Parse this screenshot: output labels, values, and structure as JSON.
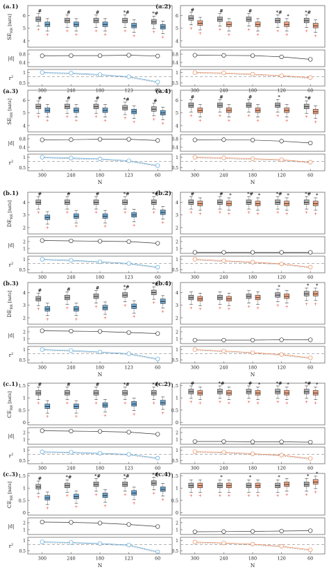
{
  "colors": {
    "box_gray": "#b3b3b3",
    "box_blue": "#6aa9d6",
    "box_orange": "#f4a582",
    "outlier": "#e8433b",
    "line_black": "#333333",
    "line_blue": "#5aa6da",
    "line_orange": "#ea8a5c",
    "dashed": "#9a9a9a"
  },
  "chart_data": [
    {
      "type": "box",
      "panel": "(a.1)",
      "ylabel_main": "SE",
      "ylabel_sub": "RR",
      "ylabel_unit": "[nats]",
      "ylabel_d": "|d|",
      "ylabel_r2": "r",
      "xlabel": "",
      "x": [
        "300",
        "240",
        "180",
        "123",
        "60"
      ],
      "box_yticks": [
        "4",
        "5",
        "6"
      ],
      "box_ylim": [
        3.5,
        6.8
      ],
      "d_yticks": [
        "0.8",
        "0.4"
      ],
      "d_ylim": [
        0.2,
        1.0
      ],
      "r2_yticks": [
        "1",
        "0.5"
      ],
      "r2_ylim": [
        0.35,
        1.15
      ],
      "pair_color": "blue",
      "medians_gray": [
        5.7,
        5.6,
        5.6,
        5.6,
        5.5
      ],
      "medians_color": [
        5.3,
        5.3,
        5.3,
        5.2,
        5.1
      ],
      "d": [
        0.72,
        0.73,
        0.73,
        0.75,
        0.71
      ],
      "r2": [
        1.0,
        0.97,
        0.9,
        0.8,
        0.55
      ],
      "r2_ref": 0.8,
      "marks_gray": [
        "#",
        "#",
        "#",
        "*#",
        "*#"
      ],
      "marks_color": [
        "",
        "",
        "",
        "",
        ""
      ]
    },
    {
      "type": "box",
      "panel": "(a.2)",
      "ylabel_main": "",
      "ylabel_sub": "",
      "ylabel_unit": "",
      "ylabel_d": "",
      "ylabel_r2": "",
      "xlabel": "",
      "x": [
        "300",
        "240",
        "180",
        "120",
        "60"
      ],
      "box_yticks": [
        "4",
        "5",
        "6"
      ],
      "box_ylim": [
        3.5,
        6.8
      ],
      "d_yticks": [
        "0.8",
        "0.4"
      ],
      "d_ylim": [
        0.2,
        1.0
      ],
      "r2_yticks": [
        "1",
        "0.5"
      ],
      "r2_ylim": [
        0.35,
        1.15
      ],
      "pair_color": "orange",
      "medians_gray": [
        5.8,
        5.7,
        5.7,
        5.6,
        5.6
      ],
      "medians_color": [
        5.4,
        5.3,
        5.3,
        5.3,
        5.2
      ],
      "d": [
        0.75,
        0.74,
        0.73,
        0.67,
        0.55
      ],
      "r2": [
        1.0,
        0.98,
        0.92,
        0.85,
        0.76
      ],
      "r2_ref": 0.8,
      "marks_gray": [
        "#",
        "#",
        "#",
        "*#",
        "*#"
      ],
      "marks_color": [
        "",
        "",
        "",
        "*",
        ""
      ]
    },
    {
      "type": "box",
      "panel": "(a.3)",
      "ylabel_main": "SE",
      "ylabel_sub": "RR",
      "ylabel_unit": "[nats]",
      "ylabel_d": "|d|",
      "ylabel_r2": "r",
      "xlabel": "N",
      "x": [
        "300",
        "240",
        "180",
        "123",
        "60"
      ],
      "box_yticks": [
        "4",
        "5",
        "6"
      ],
      "box_ylim": [
        3.5,
        6.8
      ],
      "d_yticks": [
        "0.8",
        "0.4"
      ],
      "d_ylim": [
        0.2,
        1.0
      ],
      "r2_yticks": [
        "1",
        "0.5"
      ],
      "r2_ylim": [
        0.35,
        1.15
      ],
      "pair_color": "blue",
      "medians_gray": [
        5.5,
        5.5,
        5.5,
        5.4,
        5.3
      ],
      "medians_color": [
        5.2,
        5.2,
        5.2,
        5.1,
        5.0
      ],
      "d": [
        0.75,
        0.76,
        0.78,
        0.78,
        0.72
      ],
      "r2": [
        1.0,
        0.96,
        0.92,
        0.83,
        0.6
      ],
      "r2_ref": 0.8,
      "marks_gray": [
        "#",
        "#",
        "#",
        "*#",
        "#"
      ],
      "marks_color": [
        "",
        "",
        "",
        "",
        ""
      ]
    },
    {
      "type": "box",
      "panel": "(a.4)",
      "ylabel_main": "",
      "ylabel_sub": "",
      "ylabel_unit": "",
      "ylabel_d": "",
      "ylabel_r2": "",
      "xlabel": "N",
      "x": [
        "300",
        "240",
        "180",
        "120",
        "60"
      ],
      "box_yticks": [
        "4",
        "5",
        "6"
      ],
      "box_ylim": [
        3.5,
        6.8
      ],
      "d_yticks": [
        "0.8",
        "0.4"
      ],
      "d_ylim": [
        0.2,
        1.0
      ],
      "r2_yticks": [
        "1",
        "0.5"
      ],
      "r2_ylim": [
        0.35,
        1.15
      ],
      "pair_color": "orange",
      "medians_gray": [
        5.6,
        5.6,
        5.6,
        5.6,
        5.5
      ],
      "medians_color": [
        5.2,
        5.2,
        5.2,
        5.2,
        5.1
      ],
      "d": [
        0.75,
        0.76,
        0.74,
        0.69,
        0.6
      ],
      "r2": [
        1.0,
        0.97,
        0.93,
        0.88,
        0.76
      ],
      "r2_ref": 0.8,
      "marks_gray": [
        "#",
        "#",
        "#",
        "*",
        "*#"
      ],
      "marks_color": [
        "",
        "",
        "",
        "",
        ""
      ]
    },
    {
      "type": "box",
      "panel": "(b.1)",
      "ylabel_main": "DE",
      "ylabel_sub": "RR",
      "ylabel_unit": "[nats]",
      "ylabel_d": "|d|",
      "ylabel_r2": "r",
      "xlabel": "",
      "x": [
        "300",
        "240",
        "180",
        "123",
        "60"
      ],
      "box_yticks": [
        "2",
        "3",
        "4"
      ],
      "box_ylim": [
        1.5,
        4.8
      ],
      "d_yticks": [
        "2",
        "1"
      ],
      "d_ylim": [
        0.3,
        2.7
      ],
      "r2_yticks": [
        "1",
        "0.5"
      ],
      "r2_ylim": [
        0.35,
        1.15
      ],
      "pair_color": "blue",
      "medians_gray": [
        4.0,
        4.0,
        4.0,
        4.0,
        4.0
      ],
      "medians_color": [
        2.8,
        2.9,
        2.9,
        3.0,
        3.2
      ],
      "d": [
        2.15,
        2.1,
        2.05,
        2.0,
        1.75
      ],
      "r2": [
        1.0,
        0.95,
        0.88,
        0.8,
        0.62
      ],
      "r2_ref": 0.8,
      "marks_gray": [
        "#",
        "#",
        "#",
        "*#",
        "*#"
      ],
      "marks_color": [
        "",
        "",
        "",
        "",
        ""
      ]
    },
    {
      "type": "box",
      "panel": "(b.2)",
      "ylabel_main": "",
      "ylabel_sub": "",
      "ylabel_unit": "",
      "ylabel_d": "",
      "ylabel_r2": "",
      "xlabel": "",
      "x": [
        "300",
        "240",
        "180",
        "120",
        "60"
      ],
      "box_yticks": [
        "2",
        "3",
        "4"
      ],
      "box_ylim": [
        1.5,
        4.8
      ],
      "d_yticks": [
        "2",
        "1"
      ],
      "d_ylim": [
        0.3,
        2.7
      ],
      "r2_yticks": [
        "1",
        "0.5"
      ],
      "r2_ylim": [
        0.35,
        1.15
      ],
      "pair_color": "orange",
      "medians_gray": [
        4.0,
        4.0,
        4.0,
        4.0,
        4.0
      ],
      "medians_color": [
        3.9,
        3.9,
        3.9,
        3.9,
        3.9
      ],
      "d": [
        0.45,
        0.45,
        0.45,
        0.45,
        0.45
      ],
      "r2": [
        1.0,
        0.93,
        0.86,
        0.78,
        0.62
      ],
      "r2_ref": 0.8,
      "marks_gray": [
        "#",
        "#",
        "*#",
        "*#",
        "*#"
      ],
      "marks_color": [
        "",
        "*",
        "*",
        "*",
        "*"
      ]
    },
    {
      "type": "box",
      "panel": "(b.3)",
      "ylabel_main": "DE",
      "ylabel_sub": "RR",
      "ylabel_unit": "[nats]",
      "ylabel_d": "|d|",
      "ylabel_r2": "r",
      "xlabel": "N",
      "x": [
        "300",
        "240",
        "180",
        "123",
        "60"
      ],
      "box_yticks": [
        "2",
        "3",
        "4"
      ],
      "box_ylim": [
        1.5,
        4.8
      ],
      "d_yticks": [
        "2",
        "1"
      ],
      "d_ylim": [
        0.3,
        2.7
      ],
      "r2_yticks": [
        "1",
        "0.5"
      ],
      "r2_ylim": [
        0.35,
        1.15
      ],
      "pair_color": "blue",
      "medians_gray": [
        3.5,
        3.6,
        3.7,
        3.8,
        4.0
      ],
      "medians_color": [
        2.7,
        2.7,
        2.8,
        2.9,
        3.3
      ],
      "d": [
        2.15,
        2.1,
        2.05,
        1.9,
        1.75
      ],
      "r2": [
        1.0,
        0.95,
        0.88,
        0.8,
        0.55
      ],
      "r2_ref": 0.8,
      "marks_gray": [
        "#",
        "#",
        "#",
        "*#",
        "*#"
      ],
      "marks_color": [
        "",
        "",
        "",
        "",
        ""
      ]
    },
    {
      "type": "box",
      "panel": "(b.4)",
      "ylabel_main": "",
      "ylabel_sub": "",
      "ylabel_unit": "",
      "ylabel_d": "",
      "ylabel_r2": "",
      "xlabel": "N",
      "x": [
        "300",
        "240",
        "180",
        "120",
        "60"
      ],
      "box_yticks": [
        "2",
        "3",
        "4"
      ],
      "box_ylim": [
        1.5,
        4.8
      ],
      "d_yticks": [
        "2",
        "1"
      ],
      "d_ylim": [
        0.3,
        2.7
      ],
      "r2_yticks": [
        "1",
        "0.5"
      ],
      "r2_ylim": [
        0.35,
        1.15
      ],
      "pair_color": "orange",
      "medians_gray": [
        3.6,
        3.6,
        3.7,
        3.8,
        3.9
      ],
      "medians_color": [
        3.5,
        3.5,
        3.6,
        3.7,
        3.9
      ],
      "d": [
        0.8,
        0.8,
        0.8,
        0.85,
        0.85
      ],
      "r2": [
        1.0,
        0.93,
        0.85,
        0.76,
        0.6
      ],
      "r2_ref": 0.8,
      "marks_gray": [
        "",
        "",
        "",
        "*",
        "*"
      ],
      "marks_color": [
        "",
        "",
        "",
        "",
        "*"
      ]
    },
    {
      "type": "box",
      "panel": "(c.1)",
      "ylabel_main": "CE",
      "ylabel_sub": "RR",
      "ylabel_unit": "[nats]",
      "ylabel_d": "|d|",
      "ylabel_r2": "r",
      "xlabel": "",
      "x": [
        "300",
        "240",
        "180",
        "123",
        "60"
      ],
      "box_yticks": [
        "0",
        "0.5",
        "1",
        "1.5"
      ],
      "box_ylim": [
        -0.1,
        1.6
      ],
      "d_yticks": [
        "2",
        "1"
      ],
      "d_ylim": [
        0.3,
        2.7
      ],
      "r2_yticks": [
        "1",
        "0.5"
      ],
      "r2_ylim": [
        0.35,
        1.15
      ],
      "pair_color": "blue",
      "medians_gray": [
        1.2,
        1.2,
        1.2,
        1.2,
        1.2
      ],
      "medians_color": [
        0.65,
        0.65,
        0.7,
        0.75,
        0.8
      ],
      "d": [
        2.25,
        2.2,
        2.15,
        2.05,
        1.75
      ],
      "r2": [
        0.92,
        0.9,
        0.85,
        0.8,
        0.62
      ],
      "r2_ref": 0.8,
      "marks_gray": [
        "#",
        "#",
        "#",
        "*#",
        "*#"
      ],
      "marks_color": [
        "",
        "",
        "",
        "",
        ""
      ]
    },
    {
      "type": "box",
      "panel": "(c.2)",
      "ylabel_main": "",
      "ylabel_sub": "",
      "ylabel_unit": "",
      "ylabel_d": "",
      "ylabel_r2": "",
      "xlabel": "",
      "x": [
        "300",
        "240",
        "180",
        "120",
        "60"
      ],
      "box_yticks": [
        "0",
        "0.5",
        "1",
        "1.5"
      ],
      "box_ylim": [
        -0.1,
        1.6
      ],
      "d_yticks": [
        "2",
        "1"
      ],
      "d_ylim": [
        0.3,
        2.7
      ],
      "r2_yticks": [
        "1",
        "0.5"
      ],
      "r2_ylim": [
        0.35,
        1.15
      ],
      "pair_color": "orange",
      "medians_gray": [
        1.25,
        1.25,
        1.25,
        1.25,
        1.25
      ],
      "medians_color": [
        1.2,
        1.2,
        1.2,
        1.2,
        1.2
      ],
      "d": [
        0.7,
        0.7,
        0.65,
        0.65,
        0.6
      ],
      "r2": [
        0.93,
        0.9,
        0.83,
        0.76,
        0.6
      ],
      "r2_ref": 0.8,
      "marks_gray": [
        "#",
        "*#",
        "#",
        "*#",
        "*#"
      ],
      "marks_color": [
        "",
        "",
        "*",
        "*",
        "*"
      ]
    },
    {
      "type": "box",
      "panel": "(c.3)",
      "ylabel_main": "CE",
      "ylabel_sub": "RR",
      "ylabel_unit": "[nats]",
      "ylabel_d": "|d|",
      "ylabel_r2": "r",
      "xlabel": "N",
      "x": [
        "300",
        "240",
        "180",
        "123",
        "60"
      ],
      "box_yticks": [
        "0",
        "0.5",
        "1",
        "1.5"
      ],
      "box_ylim": [
        -0.1,
        1.6
      ],
      "d_yticks": [
        "2",
        "1"
      ],
      "d_ylim": [
        0.3,
        2.7
      ],
      "r2_yticks": [
        "1",
        "0.5"
      ],
      "r2_ylim": [
        0.35,
        1.15
      ],
      "pair_color": "blue",
      "medians_gray": [
        1.05,
        1.1,
        1.15,
        1.15,
        1.2
      ],
      "medians_color": [
        0.6,
        0.65,
        0.7,
        0.8,
        0.95
      ],
      "d": [
        2.1,
        2.05,
        1.95,
        1.75,
        1.45
      ],
      "r2": [
        0.93,
        0.9,
        0.85,
        0.78,
        0.45
      ],
      "r2_ref": 0.8,
      "marks_gray": [
        "#",
        "*#",
        "*#",
        "*#",
        "*#"
      ],
      "marks_color": [
        "",
        "",
        "",
        "",
        ""
      ]
    },
    {
      "type": "box",
      "panel": "(c.4)",
      "ylabel_main": "",
      "ylabel_sub": "",
      "ylabel_unit": "",
      "ylabel_d": "",
      "ylabel_r2": "",
      "xlabel": "N",
      "x": [
        "300",
        "240",
        "180",
        "120",
        "60"
      ],
      "box_yticks": [
        "0",
        "0.5",
        "1",
        "1.5"
      ],
      "box_ylim": [
        -0.1,
        1.6
      ],
      "d_yticks": [
        "2",
        "1"
      ],
      "d_ylim": [
        0.3,
        2.7
      ],
      "r2_yticks": [
        "1",
        "0.5"
      ],
      "r2_ylim": [
        0.35,
        1.15
      ],
      "pair_color": "orange",
      "medians_gray": [
        1.1,
        1.1,
        1.1,
        1.1,
        1.15
      ],
      "medians_color": [
        1.1,
        1.1,
        1.1,
        1.15,
        1.25
      ],
      "d": [
        0.7,
        0.72,
        0.75,
        0.8,
        0.85
      ],
      "r2": [
        0.92,
        0.88,
        0.82,
        0.72,
        0.55
      ],
      "r2_ref": 0.8,
      "marks_gray": [
        "",
        "*",
        "*",
        "*",
        "*"
      ],
      "marks_color": [
        "",
        "",
        "",
        "",
        "*"
      ]
    }
  ]
}
